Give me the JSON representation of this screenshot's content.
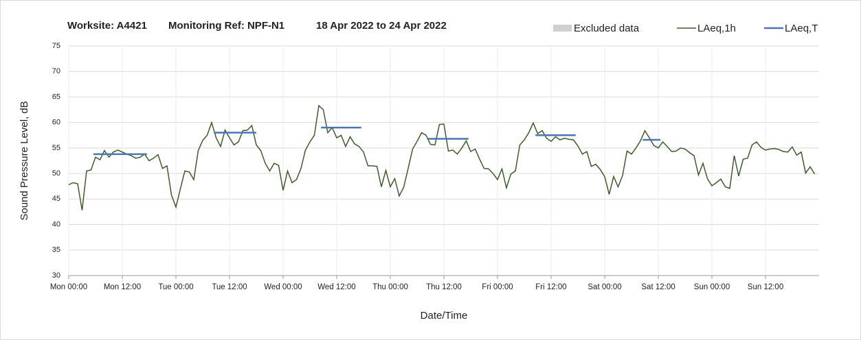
{
  "chart_data": {
    "type": "line",
    "title_parts": [
      "Worksite: A4421",
      "Monitoring Ref: NPF-N1",
      "18 Apr 2022 to 24 Apr 2022"
    ],
    "x_label": "Date/Time",
    "y_label": "Sound Pressure Level, dB",
    "legend": [
      "Excluded data"
    ],
    "excluded_color": "#d0d0d0",
    "xlim": [
      0,
      168
    ],
    "xticks": [
      {
        "value": 0,
        "label": "Mon 00:00"
      },
      {
        "value": 12,
        "label": "Mon 12:00"
      },
      {
        "value": 24,
        "label": "Tue 00:00"
      },
      {
        "value": 36,
        "label": "Tue 12:00"
      },
      {
        "value": 48,
        "label": "Wed 00:00"
      },
      {
        "value": 60,
        "label": "Wed 12:00"
      },
      {
        "value": 72,
        "label": "Thu 00:00"
      },
      {
        "value": 84,
        "label": "Thu 12:00"
      },
      {
        "value": 96,
        "label": "Fri 00:00"
      },
      {
        "value": 108,
        "label": "Fri 12:00"
      },
      {
        "value": 120,
        "label": "Sat 00:00"
      },
      {
        "value": 132,
        "label": "Sat 12:00"
      },
      {
        "value": 144,
        "label": "Sun 00:00"
      },
      {
        "value": 156,
        "label": "Sun 12:00"
      }
    ],
    "ylim": [
      30,
      75
    ],
    "yticks": [
      30,
      35,
      40,
      45,
      50,
      55,
      60,
      65,
      70,
      75
    ],
    "grid": true,
    "series": [
      {
        "name": "LAeq,1h",
        "color": "#3d5c28",
        "x": [
          0,
          1,
          2,
          3,
          4,
          5,
          6,
          7,
          8,
          9,
          10,
          11,
          12,
          13,
          14,
          15,
          16,
          17,
          18,
          19,
          20,
          21,
          22,
          23,
          24,
          25,
          26,
          27,
          28,
          29,
          30,
          31,
          32,
          33,
          34,
          35,
          36,
          37,
          38,
          39,
          40,
          41,
          42,
          43,
          44,
          45,
          46,
          47,
          48,
          49,
          50,
          51,
          52,
          53,
          54,
          55,
          56,
          57,
          58,
          59,
          60,
          61,
          62,
          63,
          64,
          65,
          66,
          67,
          68,
          69,
          70,
          71,
          72,
          73,
          74,
          75,
          76,
          77,
          78,
          79,
          80,
          81,
          82,
          83,
          84,
          85,
          86,
          87,
          88,
          89,
          90,
          91,
          92,
          93,
          94,
          95,
          96,
          97,
          98,
          99,
          100,
          101,
          102,
          103,
          104,
          105,
          106,
          107,
          108,
          109,
          110,
          111,
          112,
          113,
          114,
          115,
          116,
          117,
          118,
          119,
          120,
          121,
          122,
          123,
          124,
          125,
          126,
          127,
          128,
          129,
          130,
          131,
          132,
          133,
          134,
          135,
          136,
          137,
          138,
          139,
          140,
          141,
          142,
          143,
          144,
          145,
          146,
          147,
          148,
          149,
          150,
          151,
          152,
          153,
          154,
          155,
          156,
          157,
          158,
          159,
          160,
          161,
          162,
          163,
          164,
          165,
          166,
          167
        ],
        "values": [
          47.8,
          48.2,
          48,
          42.8,
          50.5,
          50.7,
          53.2,
          52.7,
          54.5,
          53.2,
          54.2,
          54.6,
          54.2,
          53.8,
          53.5,
          53,
          53.2,
          53.8,
          52.5,
          53,
          53.7,
          51,
          51.5,
          45.8,
          43.4,
          47,
          50.5,
          50.3,
          48.8,
          54.5,
          56.5,
          57.5,
          60,
          57,
          55.3,
          58.5,
          57,
          55.6,
          56.2,
          58.4,
          58.5,
          59.4,
          55.6,
          54.5,
          52,
          50.5,
          52,
          51.6,
          46.7,
          50.5,
          48.2,
          48.8,
          51,
          54.6,
          56.2,
          57.5,
          63.3,
          62.5,
          58,
          59,
          57,
          57.5,
          55.3,
          57.2,
          55.8,
          55.3,
          54.2,
          51.5,
          51.5,
          51.4,
          47.4,
          50.6,
          47.4,
          49,
          45.6,
          47.3,
          51,
          54.8,
          56.3,
          58,
          57.5,
          55.7,
          55.6,
          59.6,
          59.7,
          54.4,
          54.6,
          53.8,
          55,
          56.4,
          54.3,
          54.8,
          52.8,
          51,
          50.9,
          50,
          48.8,
          50.9,
          47.2,
          49.9,
          50.5,
          55.6,
          56.6,
          58,
          59.9,
          57.8,
          58.4,
          56.9,
          56.3,
          57.2,
          56.6,
          56.9,
          56.7,
          56.6,
          55.4,
          53.8,
          54.3,
          51.4,
          51.8,
          50.8,
          49.4,
          45.9,
          49.4,
          47.4,
          49.6,
          54.4,
          53.8,
          55,
          56.4,
          58.4,
          57,
          55.5,
          55,
          56.2,
          55.3,
          54.3,
          54.4,
          55,
          54.8,
          54.1,
          53.5,
          49.7,
          52,
          49,
          47.6,
          48.2,
          48.9,
          47.4,
          47.1,
          53.5,
          49.5,
          52.8,
          53,
          55.6,
          56.2,
          55.1,
          54.6,
          54.8,
          54.9,
          54.7,
          54.3,
          54.2,
          55.2,
          53.6,
          54.2,
          50.1,
          51.3,
          49.9
        ]
      },
      {
        "name": "LAeq,T",
        "color": "#4a76b8",
        "segments": [
          {
            "x": [
              5.5,
              17.5
            ],
            "value": 53.8
          },
          {
            "x": [
              32.5,
              42
            ],
            "value": 58
          },
          {
            "x": [
              56.5,
              65.5
            ],
            "value": 59
          },
          {
            "x": [
              80.5,
              89.5
            ],
            "value": 56.8
          },
          {
            "x": [
              104.5,
              113.5
            ],
            "value": 57.5
          },
          {
            "x": [
              128.5,
              132.5
            ],
            "value": 56.6
          }
        ]
      }
    ]
  }
}
